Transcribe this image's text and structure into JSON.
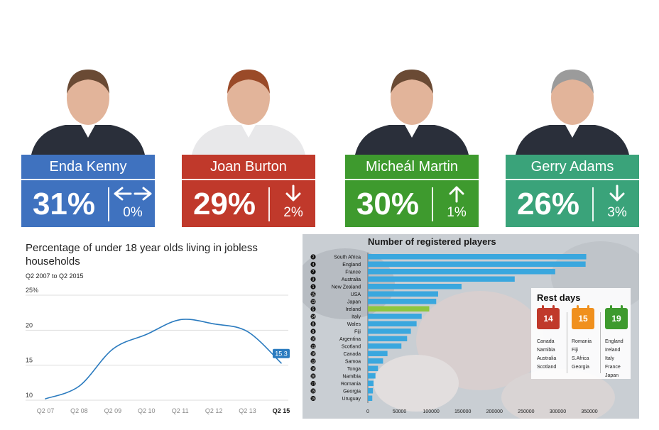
{
  "leaders": [
    {
      "name": "Enda Kenny",
      "percent": "31%",
      "change": "0%",
      "direction": "flat",
      "color": "#3f72bf"
    },
    {
      "name": "Joan Burton",
      "percent": "29%",
      "change": "2%",
      "direction": "down",
      "color": "#c0392b"
    },
    {
      "name": "Micheál Martin",
      "percent": "30%",
      "change": "1%",
      "direction": "up",
      "color": "#3e9a2e"
    },
    {
      "name": "Gerry Adams",
      "percent": "26%",
      "change": "3%",
      "direction": "down",
      "color": "#3aa37a"
    }
  ],
  "chart_data": [
    {
      "type": "line",
      "title": "Percentage of under 18 year olds living in jobless households",
      "subtitle": "Q2 2007 to Q2 2015",
      "categories": [
        "Q2 07",
        "Q2 08",
        "Q2 09",
        "Q2 10",
        "Q2 11",
        "Q2 12",
        "Q2 13",
        "Q2 15"
      ],
      "y_ticks": [
        "10",
        "15",
        "20",
        "25%"
      ],
      "ylim": [
        10,
        25
      ],
      "grid": true,
      "series": [
        {
          "x": [
            0,
            1,
            2,
            3,
            4,
            5,
            6,
            7
          ],
          "values": [
            10.2,
            12.0,
            17.3,
            19.4,
            21.5,
            20.9,
            19.8,
            15.3
          ],
          "color": "#2b7bbf"
        }
      ],
      "end_label": "15.3"
    },
    {
      "type": "bar",
      "orientation": "horizontal",
      "title": "Number of registered players",
      "categories": [
        "South Africa",
        "England",
        "France",
        "Australia",
        "New Zealand",
        "USA",
        "Japan",
        "Ireland",
        "Italy",
        "Wales",
        "Fiji",
        "Argentina",
        "Scotland",
        "Canada",
        "Samoa",
        "Tonga",
        "Namibia",
        "Romania",
        "Georgia",
        "Uruguay"
      ],
      "ranks": [
        "2",
        "4",
        "7",
        "3",
        "1",
        "15",
        "13",
        "5",
        "14",
        "8",
        "9",
        "10",
        "11",
        "18",
        "12",
        "16",
        "20",
        "17",
        "19",
        "19"
      ],
      "values": [
        345000,
        344000,
        296000,
        232000,
        148000,
        111000,
        108000,
        97000,
        85000,
        77000,
        68000,
        62000,
        53000,
        31000,
        24000,
        16000,
        12000,
        9000,
        8000,
        7000
      ],
      "highlight": "Ireland",
      "colors": {
        "bar": "#3aa7de",
        "highlight": "#8dc63f"
      },
      "x_ticks": [
        "0",
        "50000",
        "100000",
        "150000",
        "200000",
        "250000",
        "300000",
        "350000"
      ],
      "xlim": [
        0,
        350000
      ],
      "inset": {
        "title": "Rest days",
        "groups": [
          {
            "days": "14",
            "color": "#c0392b",
            "teams": [
              "Canada",
              "Namibia",
              "Australia",
              "Scotland"
            ]
          },
          {
            "days": "15",
            "color": "#f0901e",
            "teams": [
              "Romania",
              "Fiji",
              "S.Africa",
              "Georgia"
            ]
          },
          {
            "days": "19",
            "color": "#3e9a2e",
            "teams": [
              "England",
              "Ireland",
              "Italy",
              "France",
              "Japan"
            ]
          }
        ]
      }
    }
  ]
}
